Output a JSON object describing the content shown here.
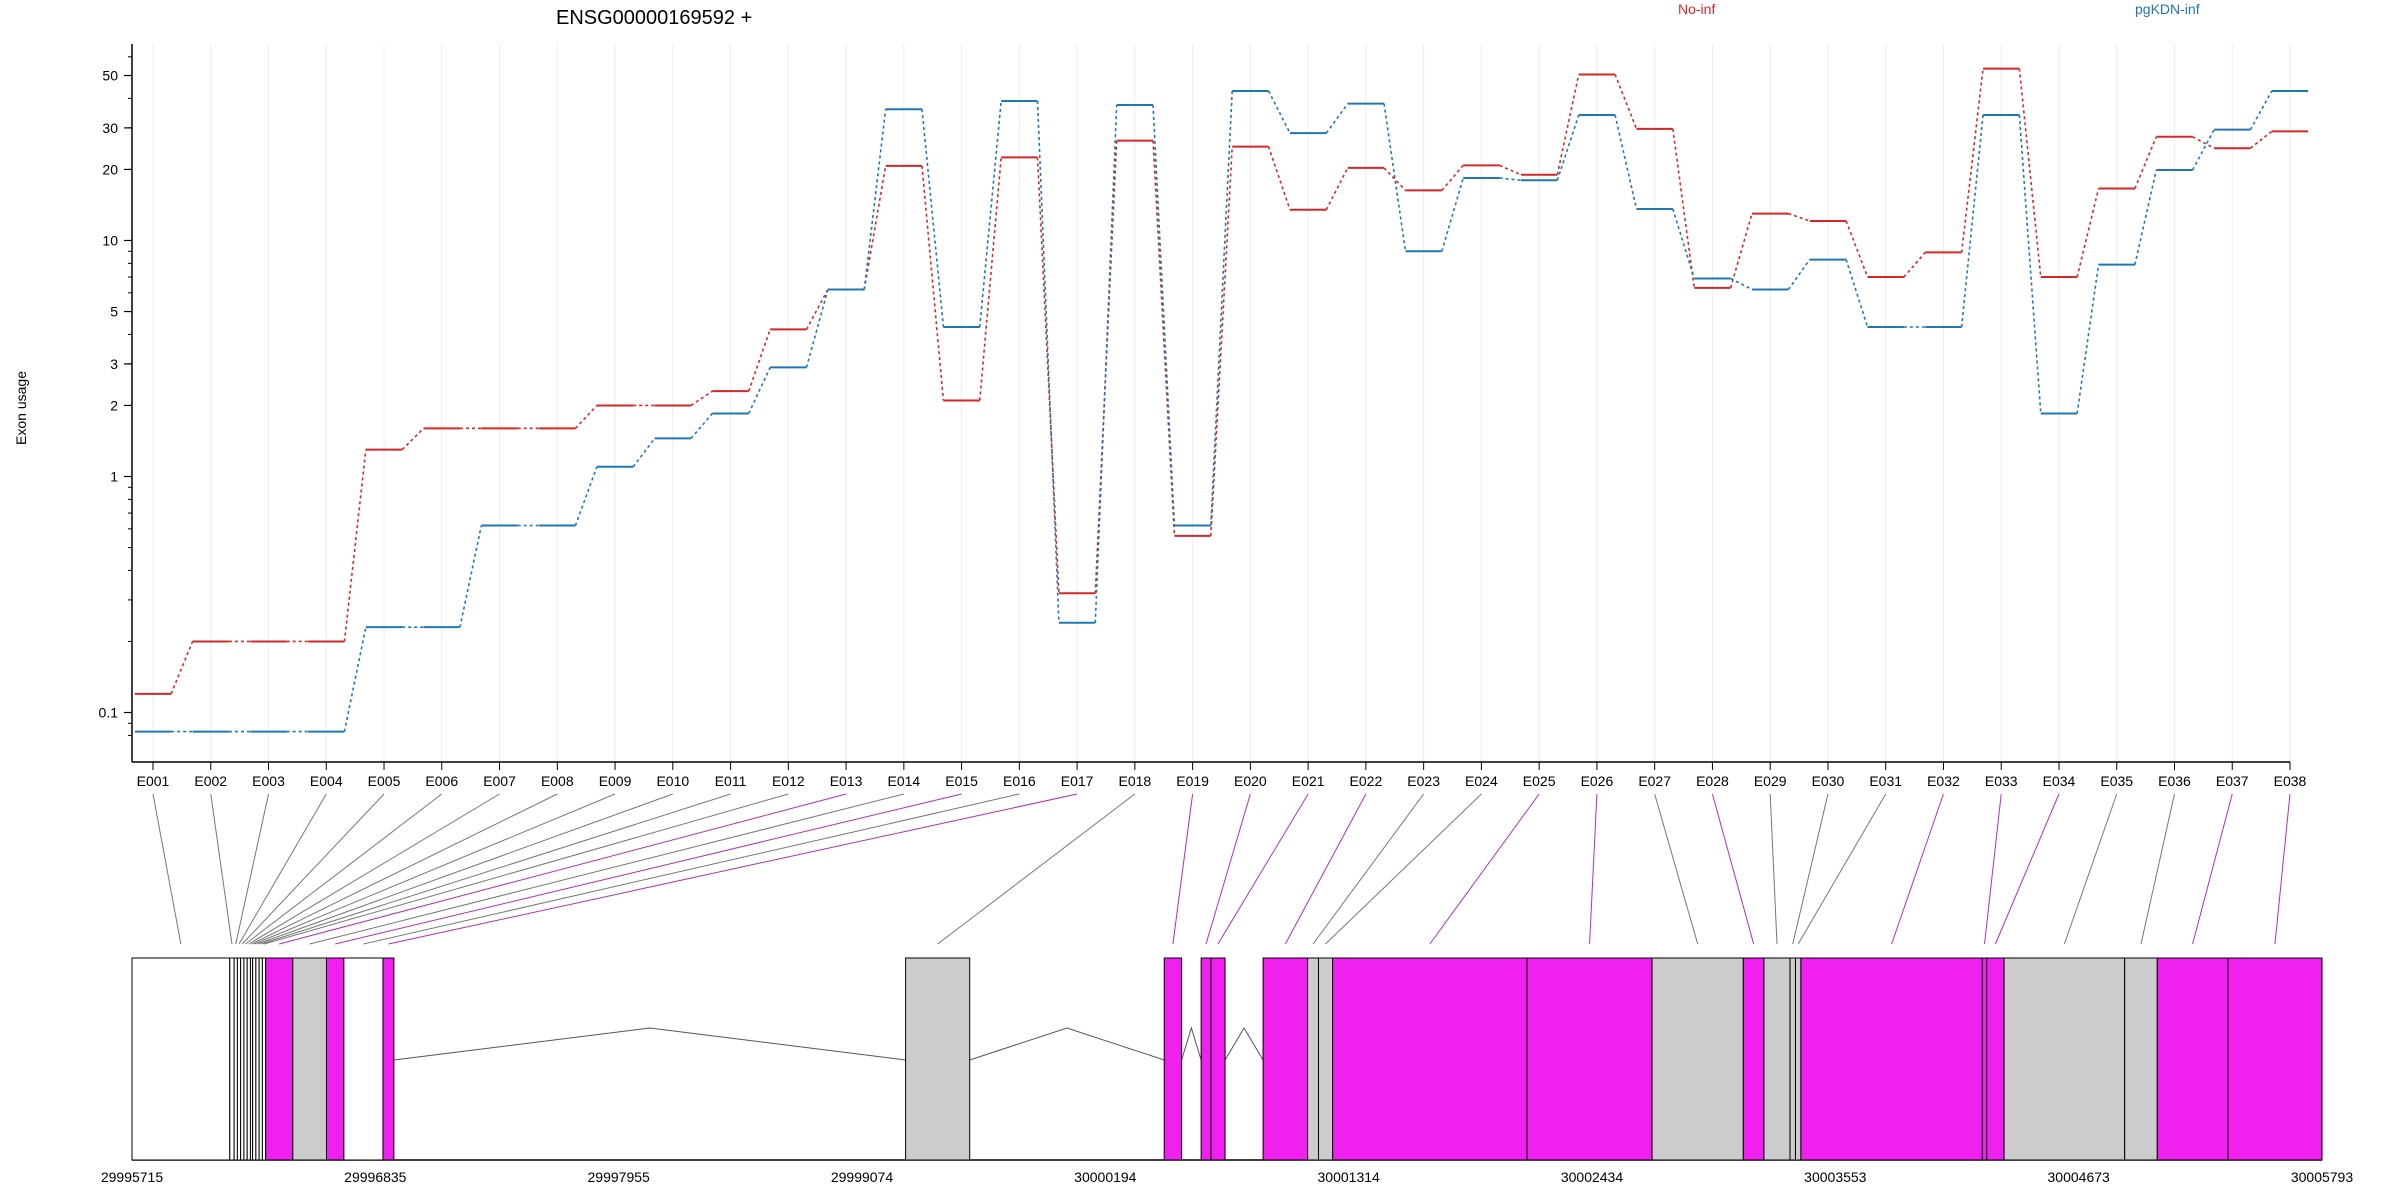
{
  "chart_data": {
    "type": "line",
    "title": "ENSG00000169592 +",
    "ylabel": "Exon usage",
    "yscale": "log",
    "ylim": [
      0.075,
      68
    ],
    "yticks": [
      0.1,
      1,
      2,
      3,
      5,
      10,
      20,
      30,
      50
    ],
    "ytick_labels": [
      "0.1",
      "1",
      "2",
      "3",
      "5",
      "10",
      "20",
      "30",
      "50"
    ],
    "grid": "vertical per exon",
    "legend": "top",
    "categories": [
      "E001",
      "E002",
      "E003",
      "E004",
      "E005",
      "E006",
      "E007",
      "E008",
      "E009",
      "E010",
      "E011",
      "E012",
      "E013",
      "E014",
      "E015",
      "E016",
      "E017",
      "E018",
      "E019",
      "E020",
      "E021",
      "E022",
      "E023",
      "E024",
      "E025",
      "E026",
      "E027",
      "E028",
      "E029",
      "E030",
      "E031",
      "E032",
      "E033",
      "E034",
      "E035",
      "E036",
      "E037",
      "E038"
    ],
    "series": [
      {
        "name": "No-inf",
        "color": "#d62728",
        "values": [
          0.12,
          0.2,
          0.2,
          0.2,
          1.3,
          1.6,
          1.6,
          1.6,
          2.0,
          2.0,
          2.3,
          4.2,
          6.2,
          20.7,
          2.1,
          22.5,
          0.32,
          26.5,
          0.56,
          25.0,
          13.5,
          20.3,
          16.3,
          20.8,
          19.0,
          50.5,
          29.7,
          6.3,
          13.0,
          12.1,
          7.0,
          8.9,
          53.5,
          7.0,
          16.6,
          27.5,
          24.6,
          29.0
        ]
      },
      {
        "name": "pgKDN-inf",
        "color": "#1f77b4",
        "values": [
          0.083,
          0.083,
          0.083,
          0.083,
          0.23,
          0.23,
          0.62,
          0.62,
          1.1,
          1.45,
          1.85,
          2.9,
          6.2,
          36.0,
          4.3,
          39.0,
          0.24,
          37.5,
          0.62,
          43.0,
          28.5,
          38.0,
          9.0,
          18.4,
          18.0,
          34.0,
          13.6,
          6.9,
          6.2,
          8.3,
          4.3,
          4.3,
          34.0,
          1.85,
          7.9,
          19.9,
          29.5,
          43.0
        ]
      }
    ],
    "gene_model": {
      "coordinate_labels": [
        "29995715",
        "29996835",
        "29997955",
        "29999074",
        "30000194",
        "30001314",
        "30002434",
        "30003553",
        "30004673",
        "30005793"
      ],
      "coord_start": 29995715,
      "coord_end": 30005793,
      "blocks": [
        {
          "exon": "E001",
          "start": 29995715,
          "end": 29996165,
          "fill": "#ffffff"
        },
        {
          "exon": "E002",
          "start": 29996165,
          "end": 29996185,
          "fill": "#ffffff"
        },
        {
          "exon": "E003",
          "start": 29996185,
          "end": 29996200,
          "fill": "#ffffff"
        },
        {
          "exon": "E004",
          "start": 29996200,
          "end": 29996215,
          "fill": "#ffffff"
        },
        {
          "exon": "E005",
          "start": 29996215,
          "end": 29996230,
          "fill": "#ffffff"
        },
        {
          "exon": "E006",
          "start": 29996230,
          "end": 29996245,
          "fill": "#ffffff"
        },
        {
          "exon": "E007",
          "start": 29996245,
          "end": 29996260,
          "fill": "#ffffff"
        },
        {
          "exon": "E008",
          "start": 29996260,
          "end": 29996270,
          "fill": "#ffffff"
        },
        {
          "exon": "E009",
          "start": 29996270,
          "end": 29996285,
          "fill": "#ffffff"
        },
        {
          "exon": "E010",
          "start": 29996285,
          "end": 29996300,
          "fill": "#ffffff"
        },
        {
          "exon": "E011",
          "start": 29996300,
          "end": 29996315,
          "fill": "#ffffff"
        },
        {
          "exon": "E012",
          "start": 29996315,
          "end": 29996330,
          "fill": "#ffffff"
        },
        {
          "exon": "E013",
          "start": 29996330,
          "end": 29996455,
          "fill": "#f020ee"
        },
        {
          "exon": "E014",
          "start": 29996455,
          "end": 29996610,
          "fill": "#cccccc"
        },
        {
          "exon": "E015",
          "start": 29996610,
          "end": 29996690,
          "fill": "#f020ee"
        },
        {
          "exon": "E016",
          "start": 29996690,
          "end": 29996870,
          "fill": "#ffffff"
        },
        {
          "exon": "E017",
          "start": 29996870,
          "end": 29996920,
          "fill": "#f020ee"
        },
        {
          "exon": "E018",
          "start": 29999275,
          "end": 29999570,
          "fill": "#cccccc"
        },
        {
          "exon": "E019",
          "start": 30000465,
          "end": 30000545,
          "fill": "#f020ee"
        },
        {
          "exon": "E020",
          "start": 30000635,
          "end": 30000680,
          "fill": "#f020ee"
        },
        {
          "exon": "E021",
          "start": 30000680,
          "end": 30000745,
          "fill": "#f020ee"
        },
        {
          "exon": "E022",
          "start": 30000920,
          "end": 30001125,
          "fill": "#f020ee"
        },
        {
          "exon": "E023",
          "start": 30001125,
          "end": 30001175,
          "fill": "#cccccc"
        },
        {
          "exon": "E024",
          "start": 30001175,
          "end": 30001240,
          "fill": "#cccccc"
        },
        {
          "exon": "E025",
          "start": 30001240,
          "end": 30002135,
          "fill": "#f020ee"
        },
        {
          "exon": "E026",
          "start": 30002135,
          "end": 30002710,
          "fill": "#f020ee"
        },
        {
          "exon": "E027",
          "start": 30002710,
          "end": 30003130,
          "fill": "#cccccc"
        },
        {
          "exon": "E028",
          "start": 30003130,
          "end": 30003225,
          "fill": "#f020ee"
        },
        {
          "exon": "E029",
          "start": 30003225,
          "end": 30003345,
          "fill": "#cccccc"
        },
        {
          "exon": "E030",
          "start": 30003345,
          "end": 30003370,
          "fill": "#cccccc"
        },
        {
          "exon": "E031",
          "start": 30003370,
          "end": 30003395,
          "fill": "#cccccc"
        },
        {
          "exon": "E032",
          "start": 30003395,
          "end": 30004230,
          "fill": "#f020ee"
        },
        {
          "exon": "E033",
          "start": 30004230,
          "end": 30004250,
          "fill": "#f020ee"
        },
        {
          "exon": "E034",
          "start": 30004250,
          "end": 30004330,
          "fill": "#f020ee"
        },
        {
          "exon": "E035",
          "start": 30004330,
          "end": 30004885,
          "fill": "#cccccc"
        },
        {
          "exon": "E036",
          "start": 30004885,
          "end": 30005035,
          "fill": "#cccccc"
        },
        {
          "exon": "E037",
          "start": 30005035,
          "end": 30005360,
          "fill": "#f020ee"
        },
        {
          "exon": "E038",
          "start": 30005360,
          "end": 30005793,
          "fill": "#f020ee"
        }
      ],
      "introns": [
        {
          "start": 29996920,
          "end": 29999275
        },
        {
          "start": 29999570,
          "end": 30000465
        },
        {
          "start": 30000545,
          "end": 30000635
        },
        {
          "start": 30000745,
          "end": 30000920
        }
      ]
    }
  }
}
